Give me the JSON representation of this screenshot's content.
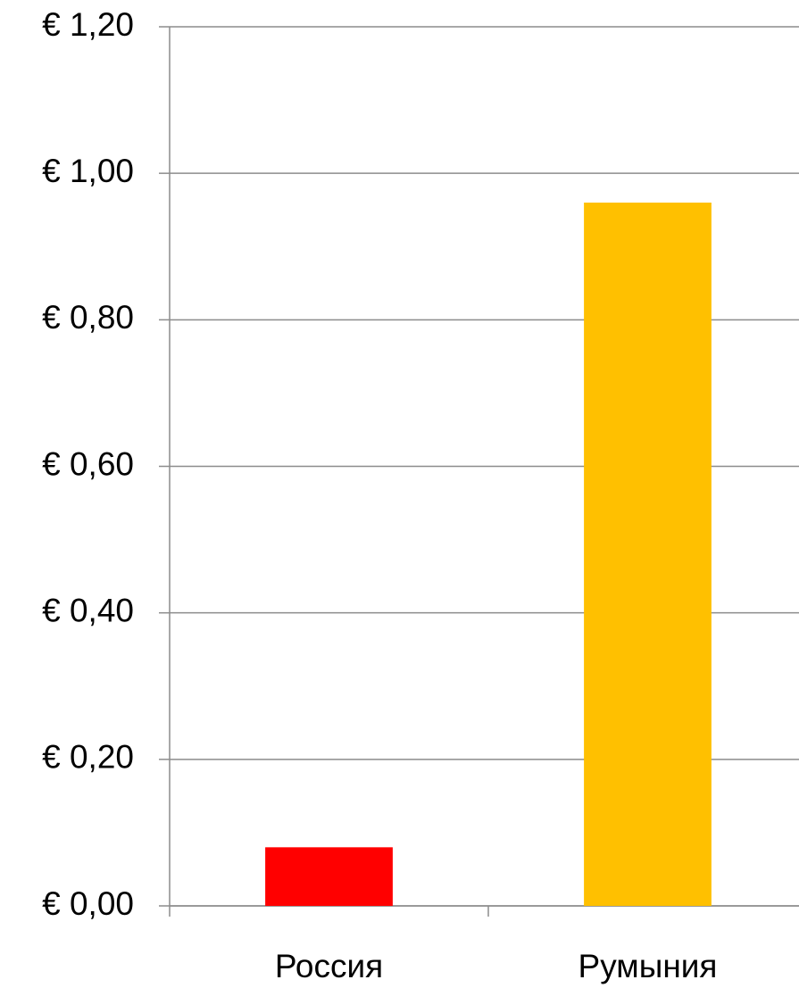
{
  "chart_data": {
    "type": "bar",
    "categories": [
      "Россия",
      "Румыния"
    ],
    "values": [
      0.08,
      0.96
    ],
    "colors": [
      "#ff0000",
      "#ffc000"
    ],
    "ylim": [
      0,
      1.2
    ],
    "yticks": [
      {
        "value": 0,
        "label": "€ 0,00"
      },
      {
        "value": 0.2,
        "label": "€ 0,20"
      },
      {
        "value": 0.4,
        "label": "€ 0,40"
      },
      {
        "value": 0.6,
        "label": "€ 0,60"
      },
      {
        "value": 0.8,
        "label": "€ 0,80"
      },
      {
        "value": 1.0,
        "label": "€ 1,00"
      },
      {
        "value": 1.2,
        "label": "€ 1,20"
      }
    ],
    "grid": true
  }
}
